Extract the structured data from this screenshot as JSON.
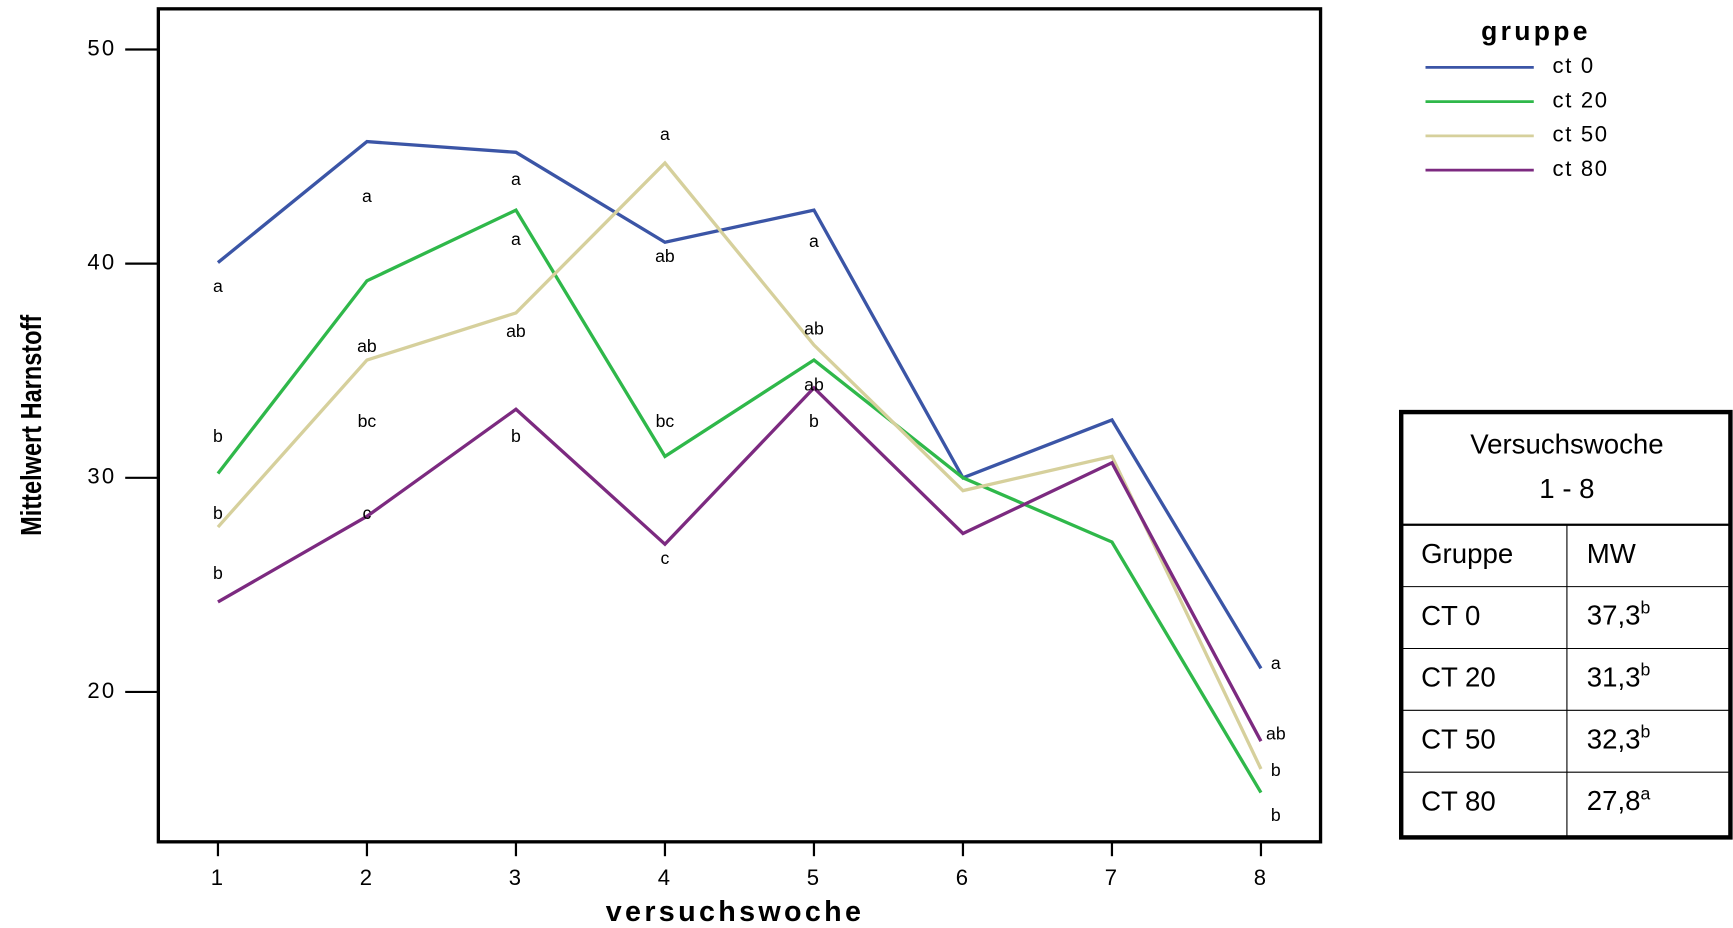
{
  "chart_data": {
    "type": "line",
    "x_label": "versuchswoche",
    "y_label": "Mittelwert Harnstoff",
    "x": [
      1,
      2,
      3,
      4,
      5,
      6,
      7,
      8
    ],
    "xlim": [
      0.6,
      8.4
    ],
    "xticks": [
      1,
      2,
      3,
      4,
      5,
      6,
      7,
      8
    ],
    "ylim": [
      13,
      51.9
    ],
    "yticks": [
      20,
      30,
      40,
      50
    ],
    "legend_title": "gruppe",
    "legend_position": "outside-top-right",
    "series": [
      {
        "name": "ct 0",
        "color": "#3b55a6",
        "values": [
          40.05,
          45.7,
          45.2,
          41.0,
          42.5,
          30.0,
          32.7,
          21.1
        ]
      },
      {
        "name": "ct 20",
        "color": "#2fb84a",
        "values": [
          30.2,
          39.2,
          42.5,
          31.0,
          35.5,
          30.0,
          27.0,
          15.3
        ]
      },
      {
        "name": "ct 50",
        "color": "#d6d09c",
        "values": [
          27.7,
          35.5,
          37.7,
          44.7,
          36.2,
          29.4,
          31.0,
          16.4
        ]
      },
      {
        "name": "ct 80",
        "color": "#7c2a80",
        "values": [
          24.2,
          28.2,
          33.2,
          26.9,
          34.2,
          27.4,
          30.7,
          17.7
        ]
      }
    ],
    "annotations": [
      {
        "text": "a",
        "x": 1,
        "y": 38.9
      },
      {
        "text": "b",
        "x": 1,
        "y": 31.9
      },
      {
        "text": "b",
        "x": 1,
        "y": 28.3
      },
      {
        "text": "b",
        "x": 1,
        "y": 25.5
      },
      {
        "text": "a",
        "x": 2,
        "y": 43.1
      },
      {
        "text": "ab",
        "x": 2,
        "y": 36.1
      },
      {
        "text": "bc",
        "x": 2,
        "y": 32.6
      },
      {
        "text": "c",
        "x": 2,
        "y": 28.3
      },
      {
        "text": "a",
        "x": 3,
        "y": 43.9
      },
      {
        "text": "a",
        "x": 3,
        "y": 41.1
      },
      {
        "text": "ab",
        "x": 3,
        "y": 36.8
      },
      {
        "text": "b",
        "x": 3,
        "y": 31.9
      },
      {
        "text": "a",
        "x": 4,
        "y": 46.0
      },
      {
        "text": "ab",
        "x": 4,
        "y": 40.3
      },
      {
        "text": "bc",
        "x": 4,
        "y": 32.6
      },
      {
        "text": "c",
        "x": 4,
        "y": 26.2
      },
      {
        "text": "a",
        "x": 5,
        "y": 41.0
      },
      {
        "text": "ab",
        "x": 5,
        "y": 36.9
      },
      {
        "text": "ab",
        "x": 5,
        "y": 34.3
      },
      {
        "text": "b",
        "x": 5,
        "y": 32.6
      },
      {
        "text": "a",
        "x": 8.1,
        "y": 21.3
      },
      {
        "text": "ab",
        "x": 8.1,
        "y": 18.0
      },
      {
        "text": "b",
        "x": 8.1,
        "y": 16.3
      },
      {
        "text": "b",
        "x": 8.1,
        "y": 14.2
      }
    ]
  },
  "table": {
    "title": [
      "Versuchswoche",
      "1 - 8"
    ],
    "header": [
      "Gruppe",
      "MW"
    ],
    "rows": [
      [
        "CT 0",
        "37,3",
        "b"
      ],
      [
        "CT 20",
        "31,3",
        "b"
      ],
      [
        "CT 50",
        "32,3",
        "b"
      ],
      [
        "CT 80",
        "27,8",
        "a"
      ]
    ]
  }
}
